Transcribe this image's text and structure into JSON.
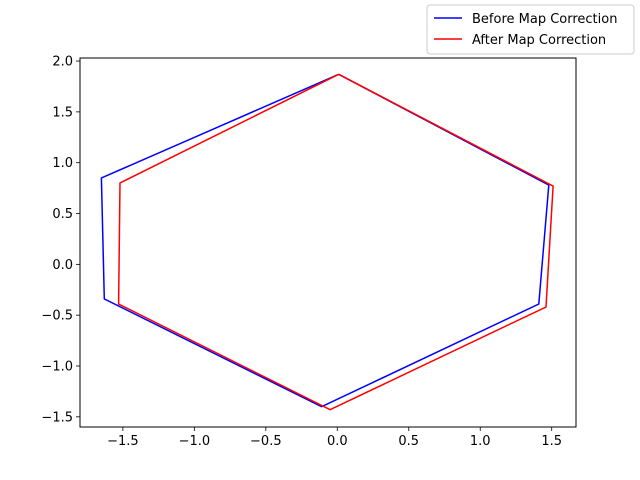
{
  "chart_data": {
    "type": "line",
    "title": "",
    "xlabel": "",
    "ylabel": "",
    "xlim": [
      -1.8,
      1.67
    ],
    "ylim": [
      -1.6,
      2.03
    ],
    "xticks": [
      -1.5,
      -1.0,
      -0.5,
      0.0,
      0.5,
      1.0,
      1.5
    ],
    "xtick_labels": [
      "−1.5",
      "−1.0",
      "−0.5",
      "0.0",
      "0.5",
      "1.0",
      "1.5"
    ],
    "yticks": [
      -1.5,
      -1.0,
      -0.5,
      0.0,
      0.5,
      1.0,
      1.5,
      2.0
    ],
    "ytick_labels": [
      "−1.5",
      "−1.0",
      "−0.5",
      "0.0",
      "0.5",
      "1.0",
      "1.5",
      "2.0"
    ],
    "grid": false,
    "legend_position": "top-right",
    "series": [
      {
        "name": "Before Map Correction",
        "color": "#0000ff",
        "x": [
          0.01,
          1.48,
          1.41,
          -0.11,
          -1.63,
          -1.65,
          0.01
        ],
        "y": [
          1.87,
          0.78,
          -0.39,
          -1.4,
          -0.34,
          0.85,
          1.87
        ]
      },
      {
        "name": "After Map Correction",
        "color": "#ff0000",
        "x": [
          0.01,
          1.51,
          1.46,
          -0.05,
          -1.53,
          -1.52,
          0.01
        ],
        "y": [
          1.87,
          0.77,
          -0.42,
          -1.43,
          -0.39,
          0.8,
          1.87
        ]
      }
    ]
  }
}
